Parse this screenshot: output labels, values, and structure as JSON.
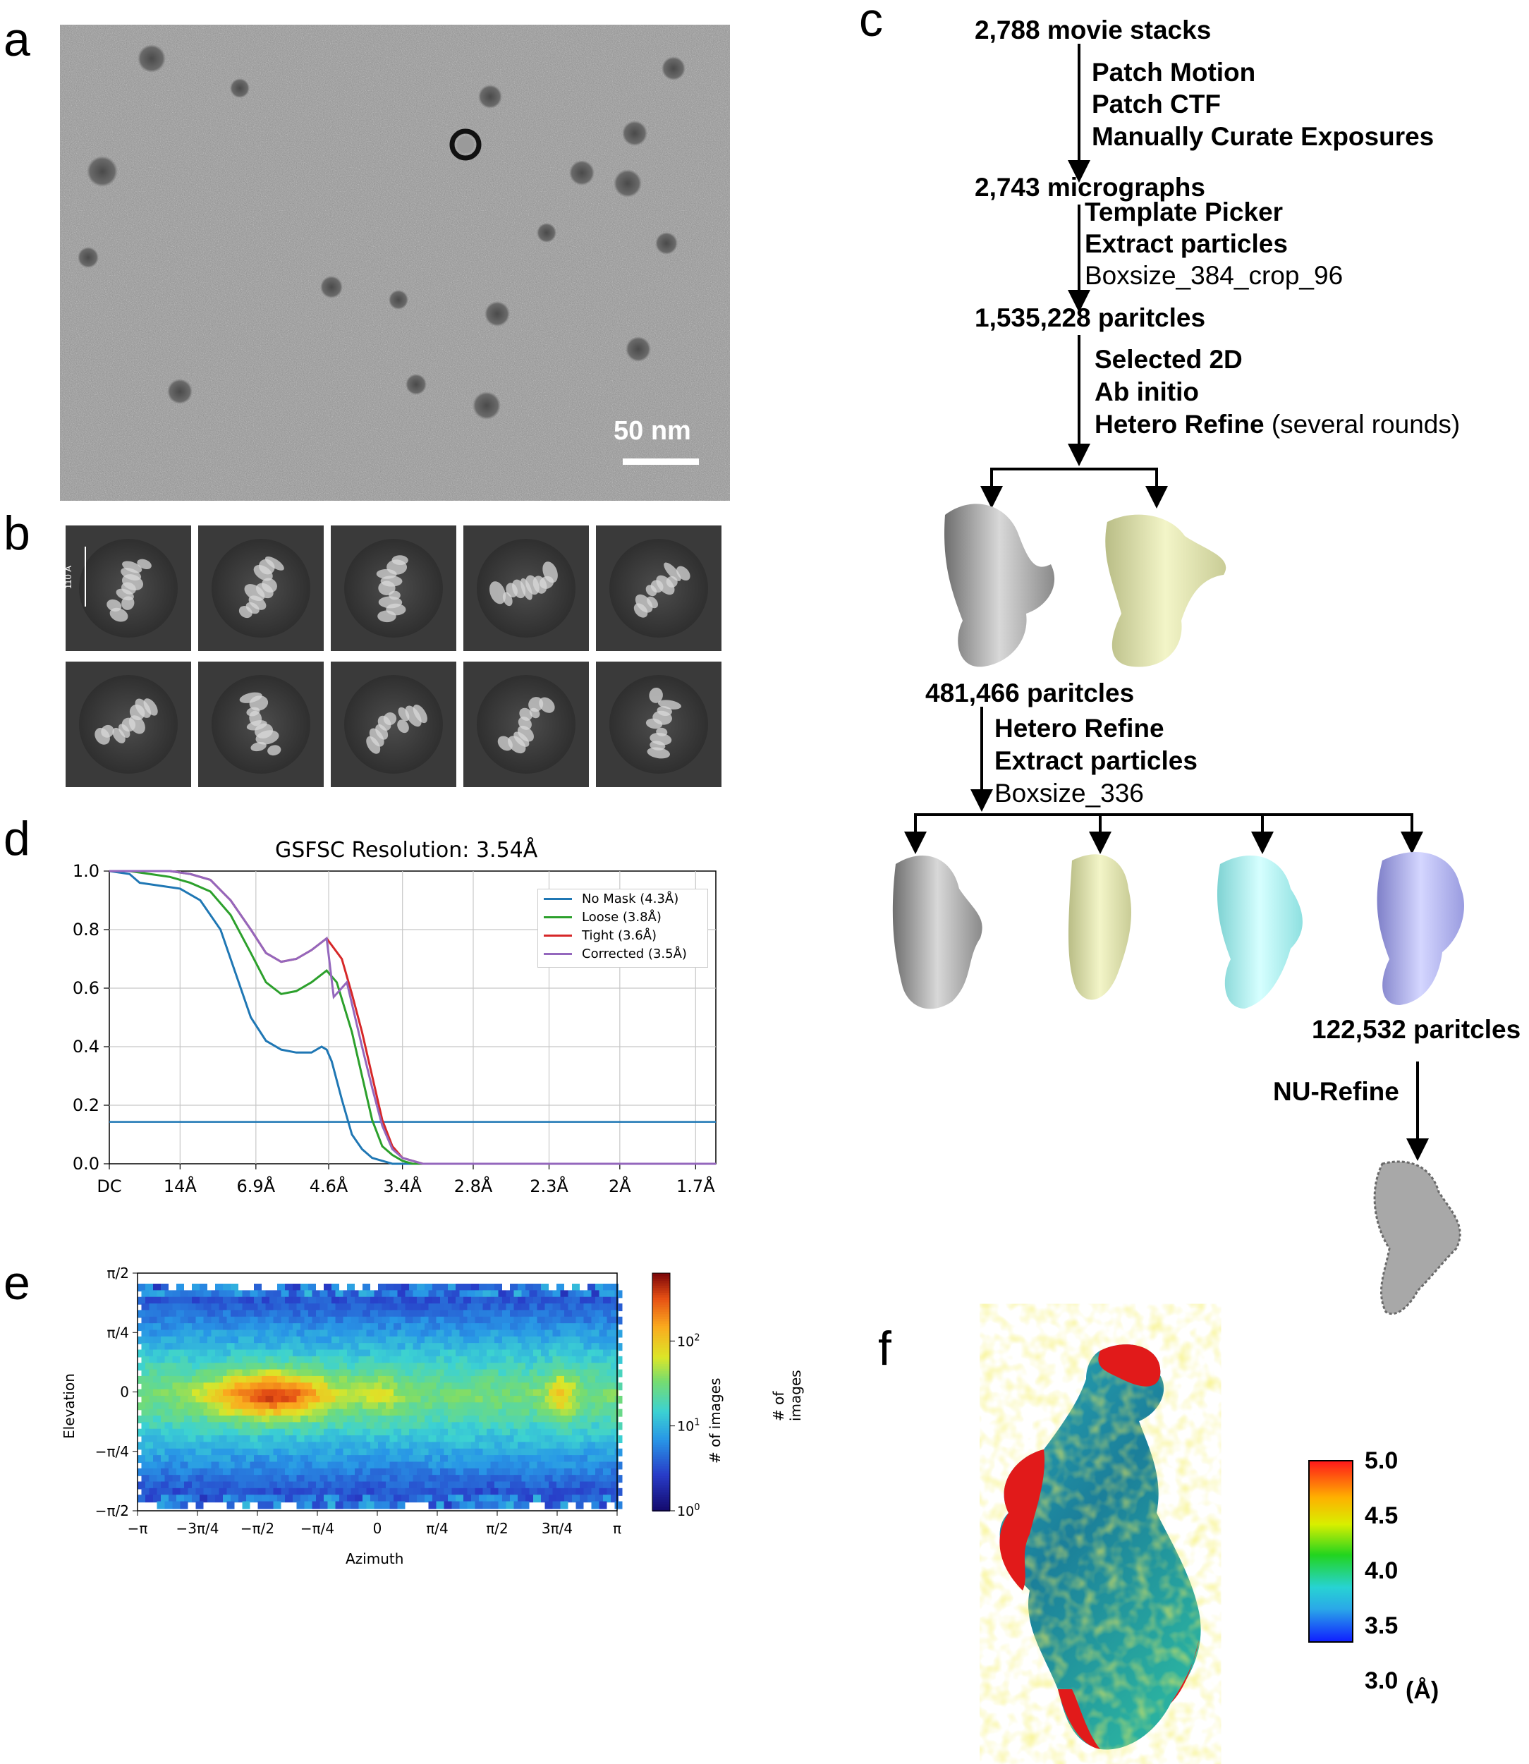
{
  "panels": {
    "a": "a",
    "b": "b",
    "c": "c",
    "d": "d",
    "e": "e",
    "f": "f"
  },
  "micrograph": {
    "scale_label": "50 nm"
  },
  "class2d": {
    "scale_label": "110 Å"
  },
  "workflow": {
    "start": "2,788 movie stacks",
    "step1": [
      "Patch Motion",
      "Patch CTF",
      "Manually Curate Exposures"
    ],
    "micrographs": "2,743 micrographs",
    "step2": [
      "Template Picker",
      "Extract particles"
    ],
    "step2_note": "Boxsize_384_crop_96",
    "particles1": "1,535,228 paritcles",
    "step3": [
      "Selected 2D",
      "Ab initio",
      "Hetero Refine"
    ],
    "step3_note": "(several rounds)",
    "particles2": "481,466 paritcles",
    "step4": [
      "Hetero Refine",
      "Extract particles"
    ],
    "step4_note": "Boxsize_336",
    "particles3": "122,532 paritcles",
    "step5": "NU-Refine"
  },
  "chart_data": [
    {
      "type": "line",
      "title": "GSFSC Resolution: 3.54Å",
      "x_tick_labels": [
        "DC",
        "14Å",
        "6.9Å",
        "4.6Å",
        "3.4Å",
        "2.8Å",
        "2.3Å",
        "2Å",
        "1.7Å"
      ],
      "x_ticks": [
        0,
        0.07,
        0.145,
        0.217,
        0.29,
        0.36,
        0.435,
        0.505,
        0.58
      ],
      "y_tick_labels": [
        "0.0",
        "0.2",
        "0.4",
        "0.6",
        "0.8",
        "1.0"
      ],
      "ylim": [
        0,
        1
      ],
      "xlim": [
        0,
        0.6
      ],
      "grid": true,
      "legend_position": "top-right",
      "threshold": 0.143,
      "colors": {
        "threshold": "#1f77b4"
      },
      "series": [
        {
          "name": "No Mask (4.3Å)",
          "color": "#1f77b4",
          "x": [
            0,
            0.02,
            0.03,
            0.05,
            0.07,
            0.09,
            0.11,
            0.125,
            0.14,
            0.155,
            0.17,
            0.185,
            0.2,
            0.21,
            0.215,
            0.22,
            0.23,
            0.24,
            0.25,
            0.26,
            0.27,
            0.28,
            0.3,
            0.35,
            0.4,
            0.45,
            0.5,
            0.55,
            0.6
          ],
          "y": [
            1.0,
            0.99,
            0.96,
            0.95,
            0.94,
            0.9,
            0.8,
            0.65,
            0.5,
            0.42,
            0.39,
            0.38,
            0.38,
            0.4,
            0.39,
            0.35,
            0.22,
            0.1,
            0.05,
            0.02,
            0.01,
            0.0,
            0.0,
            0.0,
            0.0,
            0.0,
            0.0,
            0.0,
            0.0
          ]
        },
        {
          "name": "Loose (3.8Å)",
          "color": "#2ca02c",
          "x": [
            0,
            0.02,
            0.04,
            0.06,
            0.08,
            0.1,
            0.12,
            0.14,
            0.155,
            0.17,
            0.185,
            0.2,
            0.215,
            0.225,
            0.24,
            0.25,
            0.26,
            0.27,
            0.28,
            0.29,
            0.3,
            0.35,
            0.4,
            0.45,
            0.5,
            0.55,
            0.6
          ],
          "y": [
            1.0,
            1.0,
            0.99,
            0.98,
            0.96,
            0.93,
            0.85,
            0.72,
            0.62,
            0.58,
            0.59,
            0.62,
            0.66,
            0.62,
            0.45,
            0.3,
            0.15,
            0.06,
            0.03,
            0.01,
            0.0,
            0.0,
            0.0,
            0.0,
            0.0,
            0.0,
            0.0
          ]
        },
        {
          "name": "Tight (3.6Å)",
          "color": "#d62728",
          "x": [
            0,
            0.02,
            0.04,
            0.06,
            0.08,
            0.1,
            0.12,
            0.14,
            0.155,
            0.17,
            0.185,
            0.2,
            0.215,
            0.23,
            0.24,
            0.25,
            0.26,
            0.27,
            0.28,
            0.29,
            0.3,
            0.31,
            0.35,
            0.4,
            0.45,
            0.5,
            0.55,
            0.6
          ],
          "y": [
            1.0,
            1.0,
            1.0,
            1.0,
            0.99,
            0.97,
            0.9,
            0.8,
            0.72,
            0.69,
            0.7,
            0.73,
            0.77,
            0.7,
            0.58,
            0.45,
            0.3,
            0.15,
            0.06,
            0.02,
            0.01,
            0.0,
            0.0,
            0.0,
            0.0,
            0.0,
            0.0,
            0.0
          ]
        },
        {
          "name": "Corrected (3.5Å)",
          "color": "#9467bd",
          "x": [
            0,
            0.02,
            0.04,
            0.06,
            0.08,
            0.1,
            0.12,
            0.14,
            0.155,
            0.17,
            0.185,
            0.2,
            0.215,
            0.222,
            0.235,
            0.25,
            0.26,
            0.27,
            0.28,
            0.29,
            0.3,
            0.31,
            0.35,
            0.4,
            0.45,
            0.5,
            0.55,
            0.6
          ],
          "y": [
            1.0,
            1.0,
            1.0,
            1.0,
            0.99,
            0.97,
            0.9,
            0.8,
            0.72,
            0.69,
            0.7,
            0.73,
            0.77,
            0.57,
            0.62,
            0.4,
            0.26,
            0.13,
            0.05,
            0.02,
            0.01,
            0.0,
            0.0,
            0.0,
            0.0,
            0.0,
            0.0,
            0.0
          ]
        }
      ]
    },
    {
      "type": "heatmap",
      "xlabel": "Azimuth",
      "ylabel": "Elevation",
      "x_tick_labels": [
        "−π",
        "−3π/4",
        "−π/2",
        "−π/4",
        "0",
        "π/4",
        "π/2",
        "3π/4",
        "π"
      ],
      "y_tick_labels": [
        "π/2",
        "π/4",
        "0",
        "−π/4",
        "−π/2"
      ],
      "colorbar_label": "# of images",
      "colorbar_ticks": [
        "10^0",
        "10^1",
        "10^2"
      ],
      "colorbar_scale": "log"
    }
  ],
  "local_res": {
    "ticks": [
      "5.0",
      "4.5",
      "4.0",
      "3.5",
      "3.0"
    ],
    "unit": "(Å)"
  }
}
